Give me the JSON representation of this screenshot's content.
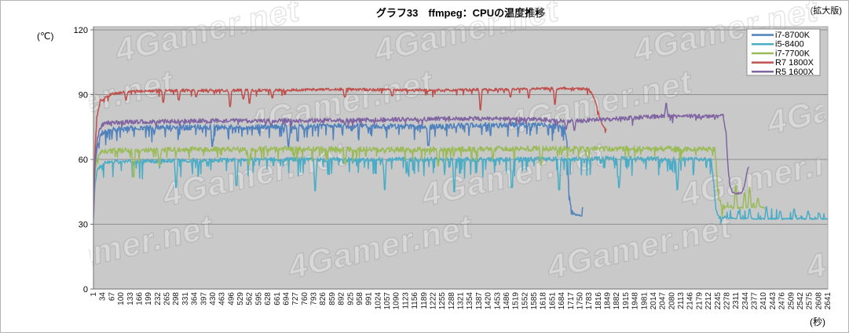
{
  "page": {
    "enlarged_note": "(拡大版)"
  },
  "chart_data": {
    "type": "line",
    "title": "グラフ33　ffmpeg：CPUの温度推移",
    "y_unit_label": "(℃)",
    "x_unit_label": "(秒)",
    "watermark": "4Gamer.net",
    "ylim": [
      0,
      120
    ],
    "y_ticks": [
      0,
      30,
      60,
      90,
      120
    ],
    "x_ticks": [
      1,
      34,
      67,
      100,
      133,
      166,
      199,
      232,
      265,
      298,
      331,
      364,
      397,
      430,
      463,
      496,
      529,
      562,
      595,
      628,
      661,
      694,
      727,
      760,
      793,
      826,
      859,
      892,
      925,
      958,
      991,
      1024,
      1057,
      1090,
      1123,
      1156,
      1189,
      1222,
      1255,
      1288,
      1321,
      1354,
      1387,
      1420,
      1453,
      1486,
      1519,
      1552,
      1585,
      1618,
      1651,
      1684,
      1717,
      1750,
      1783,
      1816,
      1849,
      1882,
      1915,
      1948,
      1981,
      2014,
      2047,
      2080,
      2113,
      2146,
      2179,
      2212,
      2245,
      2278,
      2311,
      2344,
      2377,
      2410,
      2443,
      2476,
      2509,
      2542,
      2575,
      2608,
      2641
    ],
    "x_range": [
      1,
      2641
    ],
    "grid": "horizontal",
    "legend_position": "top-right",
    "colors": {
      "plot_bg": "#c9c9c9",
      "grid_line": "#8f8f8f",
      "axis_line": "#707070",
      "plot_border": "#a6a6a6",
      "legend_bg": "#ffffff",
      "legend_border": "#8c8c8c",
      "watermark_fill": "rgba(255,255,255,0.28)",
      "watermark_stroke": "rgba(80,80,80,0.16)"
    },
    "series": [
      {
        "name": "i7-8700K",
        "color": "#4F81BD",
        "seed": 11,
        "noise": 1.2,
        "spike_prob": 0.15,
        "spike_depth": 6,
        "tail_t": 1725,
        "end_t": 1762,
        "keypoints": [
          [
            1,
            32
          ],
          [
            6,
            55
          ],
          [
            14,
            66
          ],
          [
            30,
            72
          ],
          [
            60,
            74
          ],
          [
            150,
            74.5
          ],
          [
            300,
            75
          ],
          [
            600,
            75
          ],
          [
            900,
            75.5
          ],
          [
            1200,
            75
          ],
          [
            1400,
            76
          ],
          [
            1600,
            76
          ],
          [
            1695,
            75
          ],
          [
            1703,
            68
          ],
          [
            1708,
            50
          ],
          [
            1714,
            40
          ],
          [
            1722,
            36
          ],
          [
            1732,
            34.5
          ],
          [
            1750,
            34
          ],
          [
            1757,
            33.8
          ],
          [
            1760,
            39
          ],
          [
            1762,
            36
          ]
        ],
        "dips": [
          [
            428,
            66
          ],
          [
            702,
            65.5
          ],
          [
            1205,
            66.5
          ]
        ]
      },
      {
        "name": "i5-8400",
        "color": "#4BACC6",
        "seed": 22,
        "noise": 1.0,
        "spike_prob": 0.15,
        "spike_depth": 8,
        "tail_t": 2260,
        "end_t": 2641,
        "keypoints": [
          [
            1,
            32
          ],
          [
            6,
            48
          ],
          [
            14,
            55
          ],
          [
            30,
            58
          ],
          [
            60,
            59
          ],
          [
            300,
            59.5
          ],
          [
            700,
            60
          ],
          [
            1100,
            60
          ],
          [
            1500,
            60
          ],
          [
            1900,
            60.5
          ],
          [
            2150,
            60
          ],
          [
            2222,
            60
          ],
          [
            2230,
            50
          ],
          [
            2238,
            38
          ],
          [
            2246,
            34
          ],
          [
            2260,
            33
          ],
          [
            2400,
            32.5
          ],
          [
            2641,
            32.5
          ]
        ],
        "dips": [
          [
            298,
            47
          ],
          [
            515,
            48
          ],
          [
            798,
            45.5
          ],
          [
            1048,
            46
          ],
          [
            1298,
            45
          ],
          [
            1505,
            47
          ],
          [
            1675,
            46
          ],
          [
            1890,
            47
          ],
          [
            2100,
            46
          ],
          [
            2320,
            36
          ],
          [
            2360,
            37
          ],
          [
            2420,
            38
          ],
          [
            2470,
            36
          ],
          [
            2520,
            37
          ],
          [
            2570,
            36
          ],
          [
            2610,
            35
          ]
        ]
      },
      {
        "name": "i7-7700K",
        "color": "#9BBB59",
        "seed": 33,
        "noise": 1.2,
        "spike_prob": 0.12,
        "spike_depth": 5,
        "tail_t": 2270,
        "end_t": 2415,
        "keypoints": [
          [
            1,
            33
          ],
          [
            6,
            52
          ],
          [
            14,
            60
          ],
          [
            30,
            63.5
          ],
          [
            60,
            64
          ],
          [
            300,
            64.5
          ],
          [
            700,
            65
          ],
          [
            1100,
            64.5
          ],
          [
            1500,
            65
          ],
          [
            1900,
            65
          ],
          [
            2150,
            65
          ],
          [
            2235,
            64.5
          ],
          [
            2243,
            52
          ],
          [
            2250,
            42
          ],
          [
            2258,
            39
          ],
          [
            2270,
            38
          ],
          [
            2300,
            37.5
          ],
          [
            2350,
            37.8
          ],
          [
            2400,
            38
          ],
          [
            2415,
            37.5
          ]
        ],
        "dips": [
          [
            145,
            52
          ],
          [
            238,
            57
          ],
          [
            560,
            57.5
          ],
          [
            905,
            58
          ],
          [
            1240,
            57
          ],
          [
            1610,
            57.5
          ],
          [
            2310,
            48
          ],
          [
            2342,
            44.5
          ],
          [
            2360,
            47
          ],
          [
            2390,
            42
          ]
        ]
      },
      {
        "name": "R7 1800X",
        "color": "#C0504D",
        "seed": 44,
        "noise": 0.6,
        "spike_prob": 0.08,
        "spike_depth": 2.5,
        "tail_t": null,
        "end_t": 1845,
        "keypoints": [
          [
            1,
            33
          ],
          [
            6,
            62
          ],
          [
            12,
            79
          ],
          [
            25,
            87
          ],
          [
            60,
            90
          ],
          [
            120,
            91.5
          ],
          [
            300,
            92
          ],
          [
            600,
            92
          ],
          [
            900,
            92.5
          ],
          [
            1200,
            92
          ],
          [
            1500,
            92.5
          ],
          [
            1700,
            93
          ],
          [
            1780,
            92.5
          ],
          [
            1795,
            90
          ],
          [
            1810,
            85
          ],
          [
            1822,
            79
          ],
          [
            1835,
            75
          ],
          [
            1845,
            73.5
          ]
        ],
        "dips": [
          [
            118,
            87.5
          ],
          [
            252,
            86.5
          ],
          [
            308,
            87.5
          ],
          [
            370,
            89
          ],
          [
            492,
            84.5
          ],
          [
            540,
            88
          ],
          [
            562,
            86
          ],
          [
            644,
            88.5
          ],
          [
            905,
            89
          ],
          [
            1075,
            89.5
          ],
          [
            1392,
            83
          ],
          [
            1500,
            89
          ],
          [
            1566,
            88.5
          ],
          [
            1660,
            85.5
          ]
        ]
      },
      {
        "name": "R5 1600X",
        "color": "#8064A2",
        "seed": 55,
        "noise": 1.0,
        "spike_prob": 0.06,
        "spike_depth": 2.5,
        "tail_t": 2295,
        "end_t": 2358,
        "keypoints": [
          [
            1,
            33
          ],
          [
            6,
            58
          ],
          [
            14,
            70
          ],
          [
            30,
            76
          ],
          [
            60,
            77
          ],
          [
            200,
            77.5
          ],
          [
            500,
            78
          ],
          [
            900,
            78
          ],
          [
            1300,
            79
          ],
          [
            1600,
            78.5
          ],
          [
            1700,
            77.5
          ],
          [
            1750,
            78
          ],
          [
            1900,
            79
          ],
          [
            2050,
            80
          ],
          [
            2200,
            80
          ],
          [
            2265,
            80
          ],
          [
            2275,
            72
          ],
          [
            2283,
            55
          ],
          [
            2290,
            47
          ],
          [
            2300,
            44.5
          ],
          [
            2315,
            44
          ],
          [
            2330,
            44.5
          ],
          [
            2340,
            47
          ],
          [
            2352,
            55
          ],
          [
            2358,
            57
          ]
        ],
        "dips": [
          [
            640,
            76
          ],
          [
            905,
            76.5
          ],
          [
            1700,
            74
          ],
          [
            1730,
            73.5
          ],
          [
            2060,
            86
          ]
        ]
      }
    ]
  }
}
